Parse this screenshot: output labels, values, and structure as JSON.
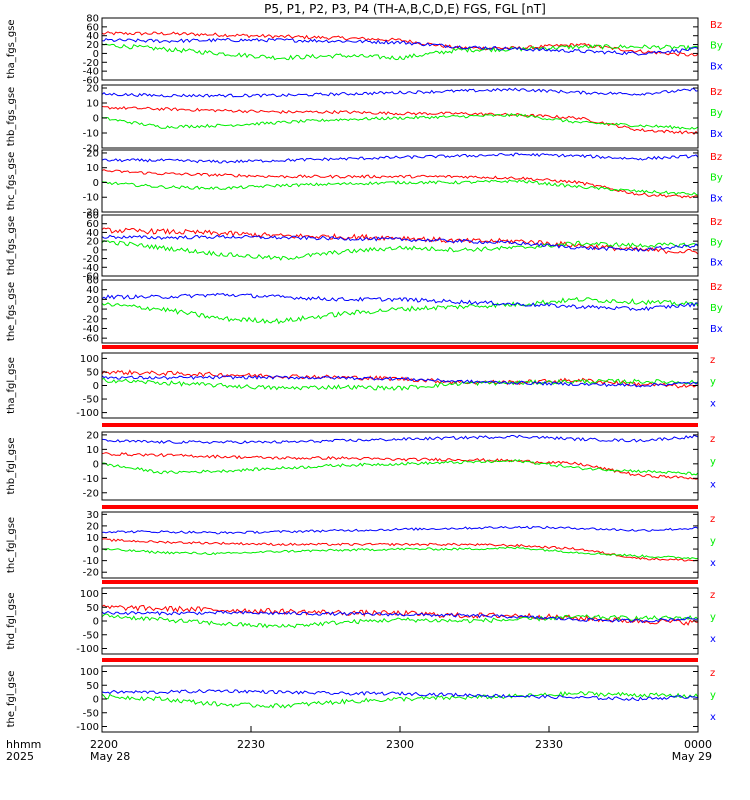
{
  "title": "P5, P1, P2, P3, P4 (TH-A,B,C,D,E) FGS, FGL [nT]",
  "time_axis": {
    "row_label_1": "hhmm",
    "row_label_2": "2025",
    "ticks": [
      {
        "time": "2200",
        "date": "May 28"
      },
      {
        "time": "2230",
        "date": ""
      },
      {
        "time": "2300",
        "date": ""
      },
      {
        "time": "2330",
        "date": ""
      },
      {
        "time": "0000",
        "date": "May 29"
      }
    ]
  },
  "colors": {
    "x": "#0000ff",
    "y": "#00ee00",
    "z": "#ff0000",
    "bar": "#ff0000",
    "axis": "#000000"
  },
  "chart_data": [
    {
      "type": "line",
      "ylabel": "tha_fgs_gse",
      "yticks": [
        80,
        60,
        40,
        20,
        0,
        -20,
        -40,
        -60
      ],
      "ylim": [
        -60,
        80
      ],
      "legend": [
        "Bz",
        "By",
        "Bx"
      ],
      "x": [
        0,
        6,
        12,
        18,
        24,
        30,
        36,
        42,
        48,
        54,
        60
      ],
      "series": [
        {
          "name": "Bz",
          "color": "#ff0000",
          "noise": 4,
          "values": [
            45,
            45,
            42,
            38,
            35,
            30,
            12,
            12,
            20,
            5,
            -5
          ]
        },
        {
          "name": "By",
          "color": "#00ee00",
          "noise": 5,
          "values": [
            20,
            10,
            0,
            -10,
            -5,
            -10,
            8,
            10,
            15,
            15,
            12
          ]
        },
        {
          "name": "Bx",
          "color": "#0000ff",
          "noise": 4,
          "values": [
            30,
            28,
            30,
            30,
            28,
            25,
            15,
            10,
            5,
            0,
            10
          ]
        }
      ]
    },
    {
      "type": "line",
      "ylabel": "thb_fgs_gse",
      "yticks": [
        20,
        10,
        0,
        -10,
        -20
      ],
      "ylim": [
        -20,
        22
      ],
      "legend": [
        "Bz",
        "By",
        "Bx"
      ],
      "x": [
        0,
        6,
        12,
        18,
        24,
        30,
        36,
        42,
        48,
        54,
        60
      ],
      "series": [
        {
          "name": "Bz",
          "color": "#ff0000",
          "noise": 1,
          "values": [
            7,
            6,
            5,
            4,
            4,
            3,
            3,
            2,
            0,
            -8,
            -10
          ]
        },
        {
          "name": "By",
          "color": "#00ee00",
          "noise": 1,
          "values": [
            0,
            -6,
            -5,
            -3,
            -1,
            0,
            1,
            2,
            -3,
            -5,
            -7
          ]
        },
        {
          "name": "Bx",
          "color": "#0000ff",
          "noise": 1,
          "values": [
            16,
            15,
            15,
            15,
            16,
            17,
            18,
            19,
            17,
            16,
            19
          ]
        }
      ]
    },
    {
      "type": "line",
      "ylabel": "thc_fgs_gse",
      "yticks": [
        20,
        10,
        0,
        -10,
        -20
      ],
      "ylim": [
        -20,
        22
      ],
      "legend": [
        "Bz",
        "By",
        "Bx"
      ],
      "x": [
        0,
        6,
        12,
        18,
        24,
        30,
        36,
        42,
        48,
        54,
        60
      ],
      "series": [
        {
          "name": "Bz",
          "color": "#ff0000",
          "noise": 1,
          "values": [
            8,
            6,
            5,
            4,
            4,
            4,
            4,
            3,
            0,
            -8,
            -10
          ]
        },
        {
          "name": "By",
          "color": "#00ee00",
          "noise": 1,
          "values": [
            0,
            -3,
            -4,
            -2,
            -1,
            0,
            0,
            1,
            -3,
            -6,
            -8
          ]
        },
        {
          "name": "Bx",
          "color": "#0000ff",
          "noise": 1,
          "values": [
            15,
            15,
            14,
            15,
            16,
            17,
            18,
            19,
            18,
            16,
            18
          ]
        }
      ]
    },
    {
      "type": "line",
      "ylabel": "thd_fgs_gse",
      "yticks": [
        80,
        60,
        40,
        20,
        0,
        -20,
        -40,
        -60
      ],
      "ylim": [
        -60,
        80
      ],
      "legend": [
        "Bz",
        "By",
        "Bx"
      ],
      "x": [
        0,
        6,
        12,
        18,
        24,
        30,
        36,
        42,
        48,
        54,
        60
      ],
      "series": [
        {
          "name": "Bz",
          "color": "#ff0000",
          "noise": 6,
          "values": [
            45,
            42,
            38,
            32,
            30,
            28,
            20,
            20,
            10,
            0,
            -5
          ]
        },
        {
          "name": "By",
          "color": "#00ee00",
          "noise": 5,
          "values": [
            20,
            5,
            -10,
            -20,
            -5,
            5,
            0,
            5,
            15,
            10,
            12
          ]
        },
        {
          "name": "Bx",
          "color": "#0000ff",
          "noise": 4,
          "values": [
            30,
            28,
            30,
            28,
            26,
            24,
            20,
            15,
            5,
            0,
            10
          ]
        }
      ]
    },
    {
      "type": "line",
      "ylabel": "the_fgs_gse",
      "yticks": [
        60,
        40,
        20,
        0,
        -20,
        -40,
        -60
      ],
      "ylim": [
        -70,
        60
      ],
      "legend": [
        "Bz",
        "By",
        "Bx"
      ],
      "x": [
        0,
        6,
        12,
        18,
        24,
        30,
        36,
        42,
        48,
        54,
        60
      ],
      "series": [
        {
          "name": "By",
          "color": "#00ee00",
          "noise": 5,
          "values": [
            10,
            0,
            -20,
            -25,
            -10,
            0,
            5,
            10,
            20,
            15,
            10
          ]
        },
        {
          "name": "Bx",
          "color": "#0000ff",
          "noise": 4,
          "values": [
            25,
            25,
            30,
            25,
            20,
            20,
            15,
            10,
            5,
            0,
            10
          ]
        }
      ]
    },
    {
      "type": "line",
      "ylabel": "tha_fgl_gse",
      "yticks": [
        100,
        50,
        0,
        -50,
        -100
      ],
      "ylim": [
        -120,
        120
      ],
      "legend": [
        "z",
        "y",
        "x"
      ],
      "x": [
        0,
        6,
        12,
        18,
        24,
        30,
        36,
        42,
        48,
        54,
        60
      ],
      "series": [
        {
          "name": "z",
          "color": "#ff0000",
          "noise": 8,
          "values": [
            50,
            45,
            40,
            35,
            30,
            25,
            12,
            12,
            20,
            5,
            -5
          ]
        },
        {
          "name": "y",
          "color": "#00ee00",
          "noise": 8,
          "values": [
            20,
            10,
            0,
            -10,
            -5,
            -10,
            8,
            10,
            15,
            15,
            12
          ]
        },
        {
          "name": "x",
          "color": "#0000ff",
          "noise": 6,
          "values": [
            30,
            28,
            30,
            30,
            28,
            25,
            15,
            10,
            5,
            0,
            10
          ]
        }
      ]
    },
    {
      "type": "line",
      "ylabel": "thb_fgl_gse",
      "yticks": [
        20,
        10,
        0,
        -10,
        -20
      ],
      "ylim": [
        -25,
        22
      ],
      "legend": [
        "z",
        "y",
        "x"
      ],
      "x": [
        0,
        6,
        12,
        18,
        24,
        30,
        36,
        42,
        48,
        54,
        60
      ],
      "series": [
        {
          "name": "z",
          "color": "#ff0000",
          "noise": 1,
          "values": [
            7,
            6,
            5,
            4,
            4,
            3,
            3,
            2,
            0,
            -8,
            -10
          ]
        },
        {
          "name": "y",
          "color": "#00ee00",
          "noise": 1,
          "values": [
            0,
            -6,
            -5,
            -3,
            -1,
            0,
            1,
            2,
            -3,
            -5,
            -7
          ]
        },
        {
          "name": "x",
          "color": "#0000ff",
          "noise": 1,
          "values": [
            16,
            15,
            15,
            15,
            16,
            17,
            18,
            19,
            17,
            16,
            19
          ]
        }
      ]
    },
    {
      "type": "line",
      "ylabel": "thc_fgl_gse",
      "yticks": [
        30,
        20,
        10,
        0,
        -10,
        -20
      ],
      "ylim": [
        -25,
        32
      ],
      "legend": [
        "z",
        "y",
        "x"
      ],
      "x": [
        0,
        6,
        12,
        18,
        24,
        30,
        36,
        42,
        48,
        54,
        60
      ],
      "series": [
        {
          "name": "z",
          "color": "#ff0000",
          "noise": 1,
          "values": [
            8,
            6,
            5,
            4,
            4,
            4,
            4,
            3,
            0,
            -8,
            -10
          ]
        },
        {
          "name": "y",
          "color": "#00ee00",
          "noise": 1,
          "values": [
            0,
            -3,
            -4,
            -2,
            -1,
            0,
            0,
            1,
            -3,
            -6,
            -8
          ]
        },
        {
          "name": "x",
          "color": "#0000ff",
          "noise": 1,
          "values": [
            15,
            15,
            14,
            15,
            16,
            17,
            18,
            19,
            18,
            16,
            18
          ]
        }
      ]
    },
    {
      "type": "line",
      "ylabel": "thd_fgl_gse",
      "yticks": [
        100,
        50,
        0,
        -50,
        -100
      ],
      "ylim": [
        -120,
        120
      ],
      "legend": [
        "z",
        "y",
        "x"
      ],
      "x": [
        0,
        6,
        12,
        18,
        24,
        30,
        36,
        42,
        48,
        54,
        60
      ],
      "series": [
        {
          "name": "z",
          "color": "#ff0000",
          "noise": 10,
          "values": [
            50,
            45,
            40,
            35,
            30,
            28,
            20,
            20,
            10,
            0,
            -5
          ]
        },
        {
          "name": "y",
          "color": "#00ee00",
          "noise": 8,
          "values": [
            20,
            5,
            -10,
            -20,
            -5,
            5,
            0,
            5,
            15,
            10,
            12
          ]
        },
        {
          "name": "x",
          "color": "#0000ff",
          "noise": 6,
          "values": [
            30,
            28,
            30,
            28,
            26,
            24,
            20,
            15,
            5,
            0,
            10
          ]
        }
      ]
    },
    {
      "type": "line",
      "ylabel": "the_fgl_gse",
      "yticks": [
        100,
        50,
        0,
        -50,
        -100
      ],
      "ylim": [
        -120,
        120
      ],
      "legend": [
        "z",
        "y",
        "x"
      ],
      "x": [
        0,
        6,
        12,
        18,
        24,
        30,
        36,
        42,
        48,
        54,
        60
      ],
      "series": [
        {
          "name": "y",
          "color": "#00ee00",
          "noise": 8,
          "values": [
            10,
            0,
            -20,
            -25,
            -10,
            0,
            5,
            10,
            20,
            15,
            10
          ]
        },
        {
          "name": "x",
          "color": "#0000ff",
          "noise": 6,
          "values": [
            25,
            25,
            30,
            25,
            20,
            20,
            15,
            10,
            5,
            0,
            10
          ]
        }
      ]
    }
  ]
}
